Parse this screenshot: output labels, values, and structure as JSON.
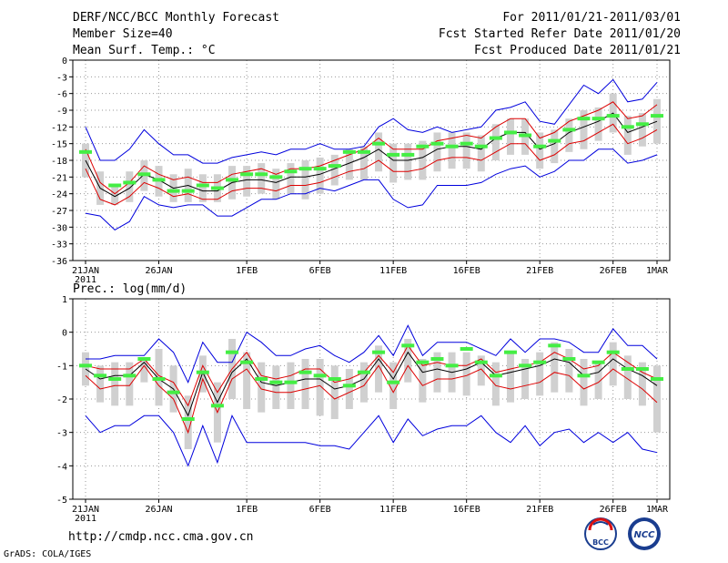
{
  "header": {
    "title": "DERF/NCC/BCC Monthly Forecast",
    "member_size": "Member Size=40",
    "variable": "Mean Surf. Temp.: °C",
    "period": "For 2011/01/21-2011/03/01",
    "started": "Fcst Started Refer Date 2011/01/20",
    "produced": "Fcst Produced Date 2011/01/21"
  },
  "precip_label": "Prec.: log(mm/d)",
  "footer": {
    "url": "http://cmdp.ncc.cma.gov.cn",
    "grads": "GrADS: COLA/IGES",
    "logo_bcc": "BCC",
    "logo_ncc": "NCC"
  },
  "colors": {
    "outer": "#0000dd",
    "inner": "#dd0000",
    "mean": "#000000",
    "bar": "#d0d0d0",
    "obs": "#44ee44",
    "grid": "#999999"
  },
  "x_ticks": [
    {
      "day": 0,
      "label": "21JAN",
      "sub": "2011"
    },
    {
      "day": 5,
      "label": "26JAN"
    },
    {
      "day": 11,
      "label": "1FEB"
    },
    {
      "day": 16,
      "label": "6FEB"
    },
    {
      "day": 21,
      "label": "11FEB"
    },
    {
      "day": 26,
      "label": "16FEB"
    },
    {
      "day": 31,
      "label": "21FEB"
    },
    {
      "day": 36,
      "label": "26FEB"
    },
    {
      "day": 39,
      "label": "1MAR"
    }
  ],
  "chart_data": [
    {
      "type": "line",
      "title": "Mean Surf. Temp.: °C",
      "ylim": [
        -36,
        0
      ],
      "yticks": [
        0,
        -3,
        -6,
        -9,
        -12,
        -15,
        -18,
        -21,
        -24,
        -27,
        -30,
        -33,
        -36
      ],
      "ytick_labels": [
        "0",
        "-3",
        "-6",
        "-9",
        "-12",
        "-15",
        "-18",
        "-21",
        "-24",
        "-27",
        "-30",
        "-33",
        "-36"
      ],
      "series": [
        {
          "name": "max",
          "values": [
            -12,
            -18,
            -18,
            -16,
            -12.5,
            -15,
            -17,
            -17,
            -18.5,
            -18.5,
            -17.5,
            -17,
            -16.5,
            -17,
            -16,
            -16,
            -15,
            -16,
            -16,
            -15.5,
            -12,
            -10.5,
            -12.5,
            -13,
            -12,
            -13,
            -12.5,
            -12,
            -9,
            -8.5,
            -7.5,
            -11,
            -11.5,
            -8,
            -4.5,
            -6,
            -3.5,
            -7.5,
            -7,
            -4
          ]
        },
        {
          "name": "upper",
          "values": [
            -16,
            -22,
            -24,
            -22,
            -19,
            -20.5,
            -21.5,
            -21,
            -22,
            -22,
            -20.5,
            -20,
            -19.5,
            -20.5,
            -19.5,
            -19.5,
            -19,
            -18,
            -17,
            -16,
            -14,
            -16,
            -16,
            -16,
            -14.5,
            -14,
            -13.5,
            -14,
            -12,
            -10.5,
            -10.5,
            -14,
            -13,
            -11,
            -10,
            -9,
            -7.5,
            -10.5,
            -10,
            -8
          ]
        },
        {
          "name": "mean",
          "values": [
            -18,
            -23,
            -24.5,
            -23,
            -20.5,
            -21.5,
            -23,
            -22.5,
            -23.5,
            -23.5,
            -22,
            -21.5,
            -21.5,
            -22,
            -21,
            -21,
            -20.5,
            -19.5,
            -18.5,
            -17.5,
            -16,
            -18,
            -18,
            -17.5,
            -16,
            -15.5,
            -15.5,
            -16,
            -14,
            -13,
            -13,
            -16,
            -15,
            -13,
            -12,
            -11,
            -9.5,
            -13,
            -12,
            -11
          ]
        },
        {
          "name": "lower",
          "values": [
            -19.5,
            -25,
            -26,
            -24.5,
            -22,
            -23,
            -24.5,
            -24,
            -25,
            -25,
            -23.5,
            -23,
            -23,
            -23.5,
            -22.5,
            -22.5,
            -22,
            -21,
            -20,
            -19.5,
            -18,
            -20,
            -20,
            -19.5,
            -18,
            -17.5,
            -17.5,
            -18,
            -16.5,
            -15,
            -15,
            -18,
            -17,
            -15,
            -14.5,
            -13,
            -11.5,
            -15,
            -14,
            -12.5
          ]
        },
        {
          "name": "min",
          "values": [
            -27.5,
            -28,
            -30.5,
            -29,
            -24.5,
            -26,
            -26.5,
            -26,
            -26,
            -28,
            -28,
            -26.5,
            -25,
            -25,
            -24,
            -24,
            -23,
            -23.5,
            -22.5,
            -21.5,
            -21.5,
            -25,
            -26.5,
            -26,
            -22.5,
            -22.5,
            -22.5,
            -22,
            -20.5,
            -19.5,
            -19,
            -21,
            -20,
            -18,
            -18,
            -16,
            -16,
            -18.5,
            -18,
            -17
          ]
        },
        {
          "name": "bar_top",
          "values": [
            -15,
            -20,
            -22.5,
            -20,
            -18,
            -19,
            -20.5,
            -19.5,
            -20.5,
            -20.5,
            -19,
            -19,
            -18.5,
            -19.5,
            -18.5,
            -18,
            -17.5,
            -17,
            -16,
            -15.5,
            -13,
            -15,
            -15,
            -14.5,
            -13,
            -13,
            -13,
            -13.5,
            -11.5,
            -10.5,
            -10.5,
            -13,
            -12.5,
            -10.5,
            -9,
            -8.5,
            -6,
            -10,
            -9.5,
            -7
          ]
        },
        {
          "name": "bar_bot",
          "values": [
            -21,
            -26,
            -26,
            -25.5,
            -23.5,
            -24.5,
            -25.5,
            -25.5,
            -25.5,
            -25.5,
            -25,
            -24.5,
            -24,
            -25,
            -24,
            -25,
            -24,
            -22.5,
            -21.5,
            -21.5,
            -20,
            -22,
            -21.5,
            -21.5,
            -20,
            -19.5,
            -19.5,
            -20,
            -18,
            -17,
            -17,
            -19.5,
            -18.5,
            -16.5,
            -16,
            -14.5,
            -13,
            -17,
            -15.5,
            -15
          ]
        },
        {
          "name": "obs",
          "values": [
            -16.5,
            null,
            -22.5,
            -22,
            -20.5,
            -21.5,
            -23.5,
            -23.5,
            -22.5,
            -23,
            -21.5,
            -20.5,
            -20.5,
            -21,
            -20,
            -19.5,
            -19.5,
            -19,
            -16.5,
            -16.5,
            -15,
            -17,
            -17,
            -15.5,
            -15,
            -15.5,
            -15,
            -15.5,
            -14,
            -13,
            -13.5,
            -15.5,
            -14.5,
            -12.5,
            -10.5,
            -10.5,
            -10,
            -12,
            -11.5,
            -10
          ]
        }
      ]
    },
    {
      "type": "line",
      "title": "Prec.: log(mm/d)",
      "ylim": [
        -5,
        1
      ],
      "yticks": [
        1,
        0,
        -1,
        -2,
        -3,
        -4,
        -5
      ],
      "ytick_labels": [
        "1",
        "0",
        "-1",
        "-2",
        "-3",
        "-4",
        "-5"
      ],
      "series": [
        {
          "name": "max",
          "values": [
            -0.8,
            -0.8,
            -0.7,
            -0.7,
            -0.7,
            -0.2,
            -0.6,
            -1.5,
            -0.3,
            -0.9,
            -0.9,
            0,
            -0.3,
            -0.7,
            -0.7,
            -0.5,
            -0.4,
            -0.7,
            -0.9,
            -0.6,
            -0.1,
            -0.7,
            0.2,
            -0.7,
            -0.3,
            -0.3,
            -0.3,
            -0.5,
            -0.7,
            -0.2,
            -0.6,
            -0.2,
            -0.2,
            -0.3,
            -0.6,
            -0.6,
            0.1,
            -0.4,
            -0.4,
            -0.8
          ]
        },
        {
          "name": "upper",
          "values": [
            -1,
            -1.1,
            -1.1,
            -1.1,
            -0.8,
            -1.3,
            -1.5,
            -2.2,
            -1.0,
            -1.8,
            -1.1,
            -0.6,
            -1.3,
            -1.4,
            -1.3,
            -1.1,
            -1.1,
            -1.5,
            -1.4,
            -1.2,
            -0.7,
            -1.2,
            -0.4,
            -1.0,
            -0.9,
            -1.0,
            -1.0,
            -0.8,
            -1.2,
            -1.1,
            -1.0,
            -0.9,
            -0.6,
            -0.8,
            -1.1,
            -1.0,
            -0.6,
            -0.9,
            -1.2,
            -1.4
          ]
        },
        {
          "name": "mean",
          "values": [
            -1.1,
            -1.4,
            -1.3,
            -1.3,
            -0.9,
            -1.4,
            -1.7,
            -2.5,
            -1.2,
            -2.1,
            -1.2,
            -0.8,
            -1.5,
            -1.6,
            -1.5,
            -1.4,
            -1.4,
            -1.7,
            -1.6,
            -1.4,
            -0.8,
            -1.4,
            -0.6,
            -1.2,
            -1.1,
            -1.2,
            -1.1,
            -0.9,
            -1.3,
            -1.2,
            -1.1,
            -1.0,
            -0.8,
            -0.9,
            -1.3,
            -1.2,
            -0.8,
            -1.1,
            -1.3,
            -1.6
          ]
        },
        {
          "name": "lower",
          "values": [
            -1.3,
            -1.7,
            -1.6,
            -1.6,
            -1.0,
            -1.6,
            -2.0,
            -3.0,
            -1.4,
            -2.4,
            -1.4,
            -1.1,
            -1.7,
            -1.8,
            -1.8,
            -1.7,
            -1.6,
            -2.0,
            -1.8,
            -1.6,
            -1.0,
            -1.8,
            -1.0,
            -1.6,
            -1.4,
            -1.4,
            -1.3,
            -1.1,
            -1.6,
            -1.7,
            -1.6,
            -1.5,
            -1.2,
            -1.3,
            -1.7,
            -1.5,
            -1.1,
            -1.4,
            -1.7,
            -2.1
          ]
        },
        {
          "name": "min",
          "values": [
            -2.5,
            -3.0,
            -2.8,
            -2.8,
            -2.5,
            -2.5,
            -3.0,
            -4.0,
            -2.8,
            -3.9,
            -2.5,
            -3.3,
            -3.3,
            -3.3,
            -3.3,
            -3.3,
            -3.4,
            -3.4,
            -3.5,
            -3.0,
            -2.5,
            -3.3,
            -2.6,
            -3.1,
            -2.9,
            -2.8,
            -2.8,
            -2.5,
            -3.0,
            -3.3,
            -2.8,
            -3.4,
            -3.0,
            -2.9,
            -3.3,
            -3.0,
            -3.3,
            -3.0,
            -3.5,
            -3.6
          ]
        },
        {
          "name": "bar_top",
          "values": [
            -0.6,
            -1.0,
            -0.9,
            -0.9,
            -0.8,
            -0.5,
            -1.0,
            -1.9,
            -0.7,
            -1.5,
            -0.2,
            -0.6,
            -0.9,
            -1.0,
            -0.9,
            -0.8,
            -0.8,
            -1.0,
            -1.1,
            -0.9,
            -0.4,
            -0.9,
            -0.2,
            -0.8,
            -0.6,
            -0.6,
            -0.6,
            -0.7,
            -0.9,
            -0.6,
            -0.8,
            -0.6,
            -0.3,
            -0.5,
            -0.8,
            -0.9,
            -0.3,
            -0.7,
            -0.9,
            -1.0
          ]
        },
        {
          "name": "bar_bot",
          "values": [
            -1.6,
            -2.1,
            -2.2,
            -2.2,
            -1.5,
            -2.2,
            -2.4,
            -3.5,
            -1.8,
            -3.3,
            -2.0,
            -2.3,
            -2.4,
            -2.3,
            -2.3,
            -2.3,
            -2.5,
            -2.6,
            -2.3,
            -2.1,
            -1.8,
            -2.3,
            -1.5,
            -2.1,
            -1.8,
            -1.8,
            -1.9,
            -1.6,
            -2.2,
            -2.1,
            -2.0,
            -1.9,
            -1.8,
            -1.8,
            -2.2,
            -2.0,
            -1.6,
            -2.0,
            -2.2,
            -3.0
          ]
        },
        {
          "name": "obs",
          "values": [
            -1.0,
            -1.3,
            -1.4,
            -1.3,
            -0.8,
            -1.4,
            -1.8,
            -2.6,
            -1.2,
            -2.2,
            -0.6,
            -0.9,
            -1.4,
            -1.5,
            -1.5,
            -1.2,
            -1.3,
            -1.4,
            -1.6,
            -1.2,
            -0.6,
            -1.5,
            -0.4,
            -0.9,
            -0.8,
            -1.0,
            -0.5,
            -0.9,
            -1.3,
            -0.6,
            -1.0,
            -0.9,
            -0.4,
            -0.8,
            -1.3,
            -0.9,
            -0.6,
            -1.1,
            -1.1,
            -1.4
          ]
        }
      ]
    }
  ]
}
